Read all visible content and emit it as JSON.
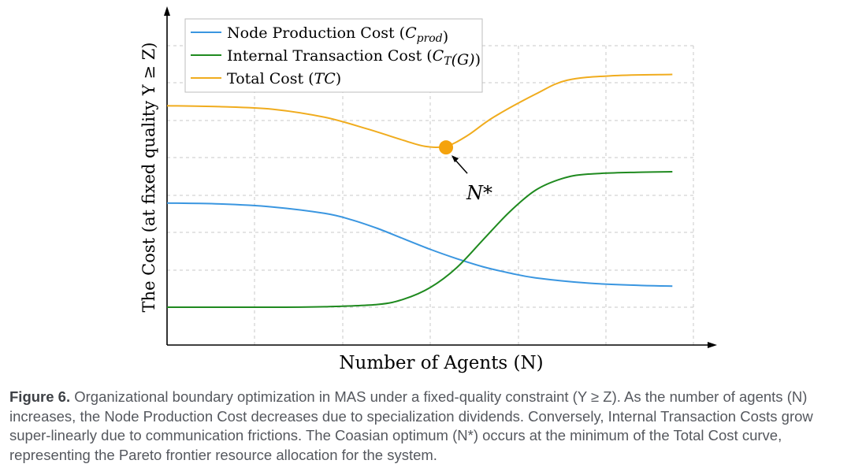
{
  "chart_data": {
    "type": "line",
    "xlabel": "Number of Agents (N)",
    "ylabel": "The Cost (at fixed quality Y ≥ Z)",
    "xlim": [
      0,
      1
    ],
    "ylim": [
      0,
      1
    ],
    "grid": true,
    "legend_position": "top-left",
    "series": [
      {
        "name": "Node Production Cost (C_prod)",
        "color": "#3a96e0",
        "x": [
          0,
          0.1,
          0.2,
          0.3,
          0.35,
          0.4,
          0.45,
          0.5,
          0.55,
          0.6,
          0.65,
          0.7,
          0.8,
          0.9,
          0.96
        ],
        "y": [
          0.45,
          0.446,
          0.433,
          0.405,
          0.378,
          0.34,
          0.295,
          0.25,
          0.21,
          0.175,
          0.148,
          0.127,
          0.104,
          0.094,
          0.091
        ]
      },
      {
        "name": "Internal Transaction Cost (C_T(G))",
        "color": "#1f8a1f",
        "x": [
          0,
          0.2,
          0.3,
          0.4,
          0.45,
          0.5,
          0.55,
          0.6,
          0.65,
          0.7,
          0.75,
          0.8,
          0.9,
          0.96
        ],
        "y": [
          0.0,
          0.0,
          0.002,
          0.012,
          0.035,
          0.085,
          0.17,
          0.29,
          0.41,
          0.505,
          0.555,
          0.575,
          0.583,
          0.585
        ]
      },
      {
        "name": "Total Cost (TC)",
        "color": "#f0ac1e",
        "x": [
          0,
          0.1,
          0.2,
          0.3,
          0.38,
          0.45,
          0.49,
          0.53,
          0.57,
          0.62,
          0.7,
          0.76,
          0.85,
          0.96
        ],
        "y": [
          0.87,
          0.866,
          0.855,
          0.82,
          0.77,
          0.72,
          0.695,
          0.695,
          0.74,
          0.82,
          0.92,
          0.98,
          1.0,
          1.005
        ]
      }
    ],
    "annotations": [
      {
        "text": "N*",
        "x": 0.53,
        "y": 0.69,
        "marker_color": "#f5a30d"
      }
    ]
  },
  "caption": {
    "label": "Figure 6.",
    "text": "Organizational boundary optimization in MAS under a fixed-quality constraint (Y ≥ Z). As the number of agents (N) increases, the Node Production Cost decreases due to specialization dividends. Conversely, Internal Transaction Costs grow super-linearly due to communication frictions. The Coasian optimum (N*) occurs at the minimum of the Total Cost curve, representing the Pareto frontier resource allocation for the system."
  }
}
